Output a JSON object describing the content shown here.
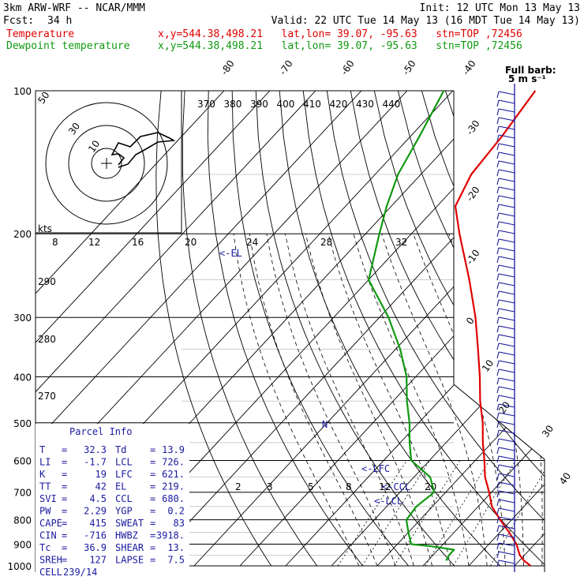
{
  "header": {
    "model": "3km ARW-WRF -- NCAR/MMM",
    "init": "Init: 12 UTC Mon 13 May 13",
    "fcst_label": "Fcst:",
    "fcst_value": "34 h",
    "valid": "Valid: 22 UTC Tue 14 May 13 (16 MDT Tue 14 May 13)",
    "temp_label": "Temperature",
    "dew_label": "Dewpoint temperature",
    "temp_loc": "x,y=544.38,498.21   lat,lon= 39.07, -95.63   stn=TOP ,72456",
    "dew_loc": "x,y=544.38,498.21   lat,lon= 39.07, -95.63   stn=TOP ,72456",
    "barb_note_1": "Full barb:",
    "barb_note_2": "5 m s⁻¹"
  },
  "colors": {
    "temperature": "#e00000",
    "dewpoint": "#119911",
    "text_blue": "#1a1aa0",
    "grid": "#000000"
  },
  "parcel_info": {
    "title": "Parcel Info",
    "rows": [
      {
        "l1": "T",
        "v1": "32.3",
        "l2": "Td",
        "v2": "13.9"
      },
      {
        "l1": "LI",
        "v1": "-1.7",
        "l2": "LCL",
        "v2": "726."
      },
      {
        "l1": "K",
        "v1": "19",
        "l2": "LFC",
        "v2": "621."
      },
      {
        "l1": "TT",
        "v1": "42",
        "l2": "EL",
        "v2": "219."
      },
      {
        "l1": "SVI",
        "v1": "4.5",
        "l2": "CCL",
        "v2": "680."
      },
      {
        "l1": "PW",
        "v1": "2.29",
        "l2": "YGP",
        "v2": "0.2"
      },
      {
        "l1": "CAPE",
        "v1": "415",
        "l2": "SWEAT",
        "v2": "83"
      },
      {
        "l1": "CIN",
        "v1": "-716",
        "l2": "HWBZ",
        "v2": "3918."
      },
      {
        "l1": "Tc",
        "v1": "36.9",
        "l2": "SHEAR",
        "v2": "13."
      },
      {
        "l1": "SREH",
        "v1": "127",
        "l2": "LAPSE",
        "v2": "7.5"
      },
      {
        "l1": "CELL",
        "v1": "239/14",
        "l2": "",
        "v2": ""
      }
    ]
  },
  "markers": {
    "el": "<-EL",
    "lfc": "<-LFC",
    "ccl": "<-CCL",
    "lcl": "<-LCL",
    "n": "N"
  },
  "hodograph": {
    "units": "kts",
    "ring_labels": [
      "10",
      "30",
      "50"
    ]
  },
  "chart_data": {
    "type": "skew-t",
    "y_axis": {
      "scale": "log-pressure",
      "unit": "hPa",
      "ticks": [
        100,
        200,
        300,
        400,
        500,
        600,
        700,
        800,
        900,
        1000
      ]
    },
    "isotherm_labels": [
      "-80",
      "-70",
      "-60",
      "-50",
      "-40",
      "-30",
      "-20",
      "-10",
      "0",
      "10",
      "20",
      "30",
      "40"
    ],
    "theta_labels": [
      "370",
      "380",
      "390",
      "400",
      "410",
      "420",
      "430",
      "440"
    ],
    "theta_left_labels": [
      "290",
      "280",
      "270"
    ],
    "mixing_ratio_labels": [
      "2",
      "3",
      "5",
      "8",
      "12",
      "20"
    ],
    "wetbulb_labels": [
      "8",
      "12",
      "16",
      "20",
      "24",
      "28",
      "32"
    ],
    "series": [
      {
        "name": "Temperature",
        "color": "#e00000",
        "points": [
          {
            "p": 1000,
            "t": 33.5
          },
          {
            "p": 975,
            "t": 31.0
          },
          {
            "p": 950,
            "t": 29.0
          },
          {
            "p": 925,
            "t": 27.5
          },
          {
            "p": 900,
            "t": 26.0
          },
          {
            "p": 850,
            "t": 22.0
          },
          {
            "p": 800,
            "t": 17.5
          },
          {
            "p": 750,
            "t": 13.0
          },
          {
            "p": 700,
            "t": 9.5
          },
          {
            "p": 650,
            "t": 5.5
          },
          {
            "p": 600,
            "t": 2.0
          },
          {
            "p": 550,
            "t": -2.0
          },
          {
            "p": 500,
            "t": -6.0
          },
          {
            "p": 450,
            "t": -11.0
          },
          {
            "p": 400,
            "t": -16.0
          },
          {
            "p": 350,
            "t": -22.0
          },
          {
            "p": 300,
            "t": -29.0
          },
          {
            "p": 250,
            "t": -38.0
          },
          {
            "p": 200,
            "t": -49.5
          },
          {
            "p": 175,
            "t": -56.0
          },
          {
            "p": 150,
            "t": -59.0
          },
          {
            "p": 125,
            "t": -60.0
          },
          {
            "p": 100,
            "t": -62.0
          }
        ]
      },
      {
        "name": "Dewpoint temperature",
        "color": "#119911",
        "points": [
          {
            "p": 975,
            "t": 14.0
          },
          {
            "p": 950,
            "t": 13.5
          },
          {
            "p": 925,
            "t": 13.5
          },
          {
            "p": 910,
            "t": 8.0
          },
          {
            "p": 900,
            "t": 3.0
          },
          {
            "p": 850,
            "t": 0.0
          },
          {
            "p": 800,
            "t": -3.0
          },
          {
            "p": 750,
            "t": -3.5
          },
          {
            "p": 700,
            "t": -2.5
          },
          {
            "p": 650,
            "t": -6.5
          },
          {
            "p": 600,
            "t": -14.0
          },
          {
            "p": 550,
            "t": -18.0
          },
          {
            "p": 500,
            "t": -22.0
          },
          {
            "p": 450,
            "t": -27.0
          },
          {
            "p": 400,
            "t": -32.0
          },
          {
            "p": 350,
            "t": -39.0
          },
          {
            "p": 300,
            "t": -48.0
          },
          {
            "p": 250,
            "t": -60.0
          },
          {
            "p": 200,
            "t": -67.0
          },
          {
            "p": 175,
            "t": -71.0
          },
          {
            "p": 150,
            "t": -75.0
          },
          {
            "p": 125,
            "t": -78.0
          },
          {
            "p": 100,
            "t": -82.0
          }
        ]
      }
    ]
  }
}
